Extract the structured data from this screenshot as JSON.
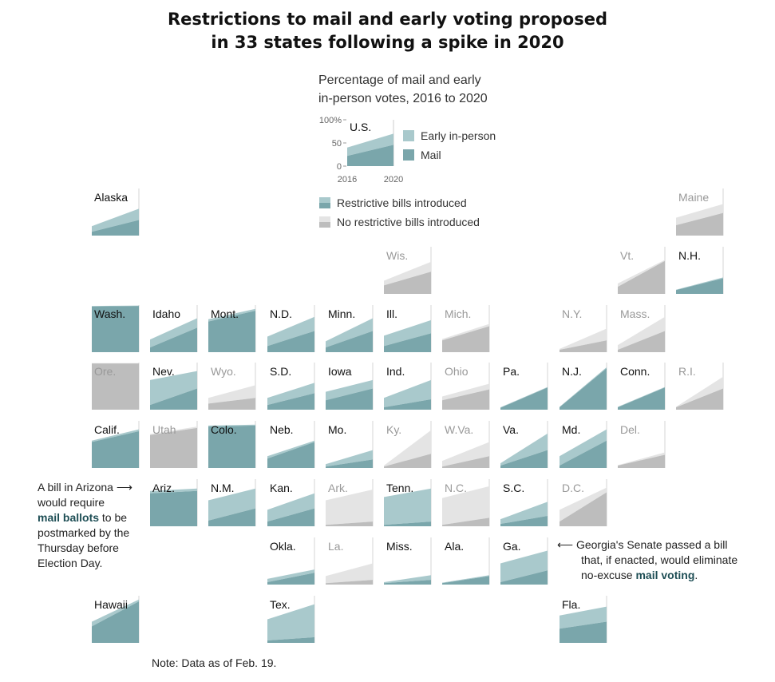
{
  "title": "Restrictions to mail and early voting proposed in 33 states following a spike in 2020",
  "title_lines": [
    "Restrictions to mail and early voting proposed",
    "in 33 states following a spike in 2020"
  ],
  "subtitle_lines": [
    "Percentage of mail and early",
    "in-person votes, 2016 to 2020"
  ],
  "colors": {
    "restrictive_early": "#a9c9cc",
    "restrictive_mail": "#7aa6ab",
    "none_early": "#e4e4e4",
    "none_mail": "#bdbdbd",
    "highlight": "#1e4e55"
  },
  "legend": {
    "sample_label": "U.S.",
    "y_ticks": [
      "100%",
      "50",
      "0"
    ],
    "x_ticks": [
      "2016",
      "2020"
    ],
    "early_label": "Early in-person",
    "mail_label": "Mail",
    "restrictive_label": "Restrictive bills introduced",
    "none_label": "No restrictive bills introduced"
  },
  "annotations": {
    "arizona": {
      "line1": "A bill in Arizona",
      "line2": "would require",
      "highlight": "mail ballots",
      "line3_rest": " to be",
      "line4": "postmarked by the",
      "line5": "Thursday before",
      "line6": "Election Day."
    },
    "georgia": {
      "line1": "Georgia's Senate passed a bill",
      "line2": "that, if enacted, would eliminate",
      "line3_pre": "no-excuse ",
      "highlight": "mail voting",
      "line3_post": "."
    }
  },
  "note": "Note: Data as of Feb. 19.",
  "chart_data": {
    "type": "area",
    "x": [
      2016,
      2020
    ],
    "y_unit": "percent of votes",
    "ylim": [
      0,
      100
    ],
    "series_names": [
      "Mail",
      "Early in-person"
    ],
    "us": {
      "label": "U.S.",
      "mail": [
        22,
        46
      ],
      "total": [
        40,
        70
      ]
    },
    "states": [
      {
        "label": "Alaska",
        "restrictive": true,
        "col": 0,
        "row": 0,
        "mail": [
          8,
          33
        ],
        "total": [
          20,
          57
        ]
      },
      {
        "label": "Maine",
        "restrictive": false,
        "col": 10,
        "row": 0,
        "mail": [
          22,
          48
        ],
        "total": [
          38,
          67
        ]
      },
      {
        "label": "Wis.",
        "restrictive": false,
        "col": 5,
        "row": 1,
        "mail": [
          18,
          47
        ],
        "total": [
          28,
          68
        ]
      },
      {
        "label": "Vt.",
        "restrictive": false,
        "col": 9,
        "row": 1,
        "mail": [
          15,
          70
        ],
        "total": [
          22,
          72
        ]
      },
      {
        "label": "N.H.",
        "restrictive": true,
        "col": 10,
        "row": 1,
        "mail": [
          8,
          33
        ],
        "total": [
          9,
          35
        ]
      },
      {
        "label": "Wash.",
        "restrictive": true,
        "col": 0,
        "row": 2,
        "mail": [
          97,
          98
        ],
        "total": [
          98,
          99
        ]
      },
      {
        "label": "Idaho",
        "restrictive": true,
        "col": 1,
        "row": 2,
        "mail": [
          10,
          52
        ],
        "total": [
          27,
          72
        ]
      },
      {
        "label": "Mont.",
        "restrictive": true,
        "col": 2,
        "row": 2,
        "mail": [
          65,
          88
        ],
        "total": [
          70,
          92
        ]
      },
      {
        "label": "N.D.",
        "restrictive": true,
        "col": 3,
        "row": 2,
        "mail": [
          13,
          45
        ],
        "total": [
          33,
          75
        ]
      },
      {
        "label": "Minn.",
        "restrictive": true,
        "col": 4,
        "row": 2,
        "mail": [
          10,
          45
        ],
        "total": [
          23,
          72
        ]
      },
      {
        "label": "Ill.",
        "restrictive": true,
        "col": 5,
        "row": 2,
        "mail": [
          13,
          40
        ],
        "total": [
          35,
          68
        ]
      },
      {
        "label": "Mich.",
        "restrictive": false,
        "col": 6,
        "row": 2,
        "mail": [
          25,
          55
        ],
        "total": [
          28,
          60
        ]
      },
      {
        "label": "N.Y.",
        "restrictive": false,
        "col": 8,
        "row": 2,
        "mail": [
          5,
          25
        ],
        "total": [
          7,
          50
        ]
      },
      {
        "label": "Mass.",
        "restrictive": false,
        "col": 9,
        "row": 2,
        "mail": [
          5,
          45
        ],
        "total": [
          15,
          75
        ]
      },
      {
        "label": "Ore.",
        "restrictive": false,
        "col": 0,
        "row": 3,
        "mail": [
          98,
          98
        ],
        "total": [
          99,
          99
        ]
      },
      {
        "label": "Nev.",
        "restrictive": true,
        "col": 1,
        "row": 3,
        "mail": [
          10,
          45
        ],
        "total": [
          63,
          82
        ]
      },
      {
        "label": "Wyo.",
        "restrictive": false,
        "col": 2,
        "row": 3,
        "mail": [
          13,
          25
        ],
        "total": [
          25,
          52
        ]
      },
      {
        "label": "S.D.",
        "restrictive": true,
        "col": 3,
        "row": 3,
        "mail": [
          10,
          35
        ],
        "total": [
          25,
          57
        ]
      },
      {
        "label": "Iowa",
        "restrictive": true,
        "col": 4,
        "row": 3,
        "mail": [
          20,
          45
        ],
        "total": [
          38,
          63
        ]
      },
      {
        "label": "Ind.",
        "restrictive": true,
        "col": 5,
        "row": 3,
        "mail": [
          5,
          22
        ],
        "total": [
          25,
          63
        ]
      },
      {
        "label": "Ohio",
        "restrictive": false,
        "col": 6,
        "row": 3,
        "mail": [
          20,
          43
        ],
        "total": [
          28,
          55
        ]
      },
      {
        "label": "Pa.",
        "restrictive": true,
        "col": 7,
        "row": 3,
        "mail": [
          4,
          47
        ],
        "total": [
          5,
          48
        ]
      },
      {
        "label": "N.J.",
        "restrictive": true,
        "col": 8,
        "row": 3,
        "mail": [
          5,
          88
        ],
        "total": [
          6,
          90
        ]
      },
      {
        "label": "Conn.",
        "restrictive": true,
        "col": 9,
        "row": 3,
        "mail": [
          5,
          47
        ],
        "total": [
          6,
          48
        ]
      },
      {
        "label": "R.I.",
        "restrictive": false,
        "col": 10,
        "row": 3,
        "mail": [
          5,
          45
        ],
        "total": [
          6,
          70
        ]
      },
      {
        "label": "Calif.",
        "restrictive": true,
        "col": 0,
        "row": 4,
        "mail": [
          55,
          78
        ],
        "total": [
          58,
          82
        ]
      },
      {
        "label": "Utah",
        "restrictive": false,
        "col": 1,
        "row": 4,
        "mail": [
          70,
          85
        ],
        "total": [
          72,
          88
        ]
      },
      {
        "label": "Colo.",
        "restrictive": true,
        "col": 2,
        "row": 4,
        "mail": [
          88,
          90
        ],
        "total": [
          90,
          92
        ]
      },
      {
        "label": "Neb.",
        "restrictive": true,
        "col": 3,
        "row": 4,
        "mail": [
          20,
          55
        ],
        "total": [
          25,
          58
        ]
      },
      {
        "label": "Mo.",
        "restrictive": true,
        "col": 4,
        "row": 4,
        "mail": [
          3,
          18
        ],
        "total": [
          8,
          38
        ]
      },
      {
        "label": "Ky.",
        "restrictive": false,
        "col": 5,
        "row": 4,
        "mail": [
          3,
          30
        ],
        "total": [
          5,
          80
        ]
      },
      {
        "label": "W.Va.",
        "restrictive": false,
        "col": 6,
        "row": 4,
        "mail": [
          3,
          25
        ],
        "total": [
          15,
          55
        ]
      },
      {
        "label": "Va.",
        "restrictive": true,
        "col": 7,
        "row": 4,
        "mail": [
          5,
          38
        ],
        "total": [
          10,
          73
        ]
      },
      {
        "label": "Md.",
        "restrictive": true,
        "col": 8,
        "row": 4,
        "mail": [
          5,
          58
        ],
        "total": [
          25,
          82
        ]
      },
      {
        "label": "Del.",
        "restrictive": false,
        "col": 9,
        "row": 4,
        "mail": [
          5,
          28
        ],
        "total": [
          6,
          33
        ]
      },
      {
        "label": "Ariz.",
        "restrictive": true,
        "col": 1,
        "row": 5,
        "mail": [
          70,
          75
        ],
        "total": [
          75,
          80
        ]
      },
      {
        "label": "N.M.",
        "restrictive": true,
        "col": 2,
        "row": 5,
        "mail": [
          12,
          38
        ],
        "total": [
          55,
          80
        ]
      },
      {
        "label": "Kan.",
        "restrictive": true,
        "col": 3,
        "row": 5,
        "mail": [
          10,
          38
        ],
        "total": [
          35,
          70
        ]
      },
      {
        "label": "Ark.",
        "restrictive": false,
        "col": 4,
        "row": 5,
        "mail": [
          3,
          10
        ],
        "total": [
          55,
          78
        ]
      },
      {
        "label": "Tenn.",
        "restrictive": true,
        "col": 5,
        "row": 5,
        "mail": [
          3,
          10
        ],
        "total": [
          62,
          80
        ]
      },
      {
        "label": "N.C.",
        "restrictive": false,
        "col": 6,
        "row": 5,
        "mail": [
          3,
          18
        ],
        "total": [
          60,
          85
        ]
      },
      {
        "label": "S.C.",
        "restrictive": true,
        "col": 7,
        "row": 5,
        "mail": [
          5,
          22
        ],
        "total": [
          15,
          52
        ]
      },
      {
        "label": "D.C.",
        "restrictive": false,
        "col": 8,
        "row": 5,
        "mail": [
          10,
          72
        ],
        "total": [
          35,
          82
        ]
      },
      {
        "label": "Okla.",
        "restrictive": true,
        "col": 3,
        "row": 6,
        "mail": [
          5,
          25
        ],
        "total": [
          12,
          32
        ]
      },
      {
        "label": "La.",
        "restrictive": false,
        "col": 4,
        "row": 6,
        "mail": [
          3,
          10
        ],
        "total": [
          18,
          45
        ]
      },
      {
        "label": "Miss.",
        "restrictive": true,
        "col": 5,
        "row": 6,
        "mail": [
          3,
          10
        ],
        "total": [
          5,
          20
        ]
      },
      {
        "label": "Ala.",
        "restrictive": true,
        "col": 6,
        "row": 6,
        "mail": [
          3,
          18
        ],
        "total": [
          4,
          20
        ]
      },
      {
        "label": "Ga.",
        "restrictive": true,
        "col": 7,
        "row": 6,
        "mail": [
          5,
          30
        ],
        "total": [
          45,
          72
        ]
      },
      {
        "label": "Hawaii",
        "restrictive": true,
        "col": 0,
        "row": 7,
        "mail": [
          35,
          88
        ],
        "total": [
          45,
          92
        ]
      },
      {
        "label": "Tex.",
        "restrictive": true,
        "col": 3,
        "row": 7,
        "mail": [
          5,
          12
        ],
        "total": [
          50,
          82
        ]
      },
      {
        "label": "Fla.",
        "restrictive": true,
        "col": 8,
        "row": 7,
        "mail": [
          30,
          45
        ],
        "total": [
          58,
          77
        ]
      }
    ]
  }
}
